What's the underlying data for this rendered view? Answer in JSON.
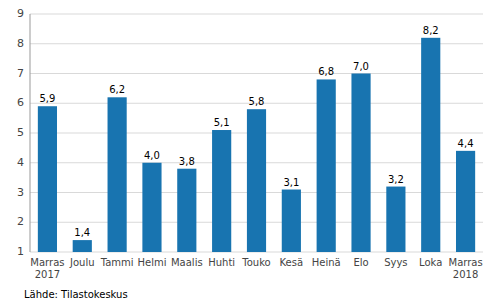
{
  "chart_data": {
    "type": "bar",
    "categories": [
      "Marras\n2017",
      "Joulu",
      "Tammi",
      "Helmi",
      "Maalis",
      "Huhti",
      "Touko",
      "Kesä",
      "Heinä",
      "Elo",
      "Syys",
      "Loka",
      "Marras\n2018"
    ],
    "values": [
      5.9,
      1.4,
      6.2,
      4.0,
      3.8,
      5.1,
      5.8,
      3.1,
      6.8,
      7.0,
      3.2,
      8.2,
      4.4
    ],
    "value_labels": [
      "5,9",
      "1,4",
      "6,2",
      "4,0",
      "3,8",
      "5,1",
      "5,8",
      "3,1",
      "6,8",
      "7,0",
      "3,2",
      "8,2",
      "4,4"
    ],
    "data_labels": true,
    "color": "#1874b0",
    "ylim": [
      1,
      9
    ],
    "yticks": [
      1,
      2,
      3,
      4,
      5,
      6,
      7,
      8,
      9
    ],
    "grid": true,
    "annotations": [
      "Lähde: Tilastokeskus"
    ]
  }
}
